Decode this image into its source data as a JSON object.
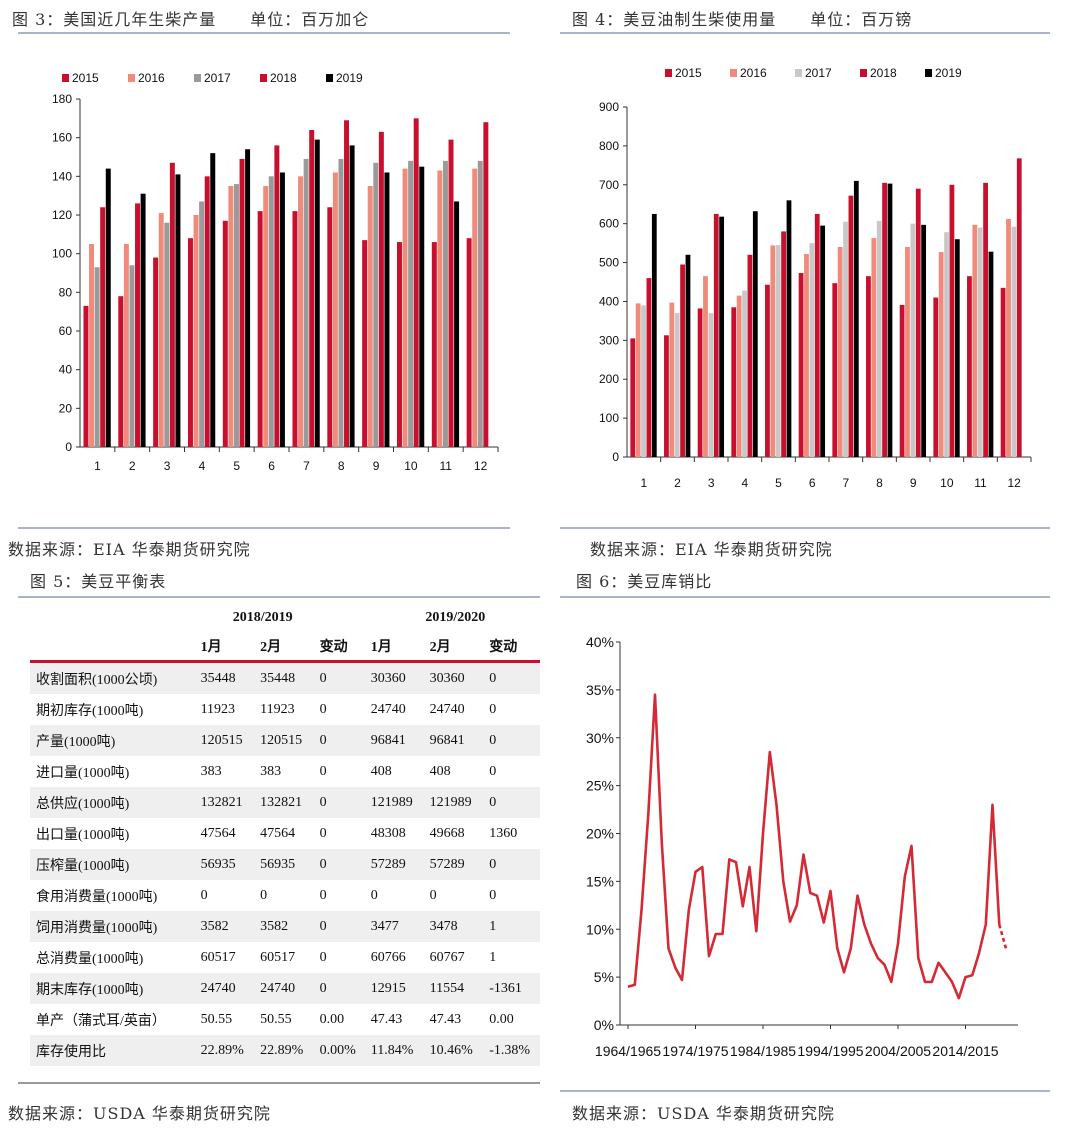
{
  "fig3": {
    "caption": "图 3：美国近几年生柴产量　　单位：百万加仑",
    "source": "数据来源：EIA 华泰期货研究院"
  },
  "fig4": {
    "caption": "图 4：美豆油制生柴使用量　　单位：百万镑",
    "source": "数据来源：EIA 华泰期货研究院"
  },
  "fig5": {
    "caption": "图 5：美豆平衡表",
    "source": "数据来源：USDA 华泰期货研究院"
  },
  "fig6": {
    "caption": "图 6：美豆库销比",
    "source": "数据来源：USDA 华泰期货研究院"
  },
  "colors": {
    "s2015": "#c8102e",
    "s2016": "#f08a7a",
    "s2017": "#9a9a9a",
    "s2018": "#c8102e",
    "s2019": "#000000",
    "s2017_fig4": "#c8c8c8",
    "line": "#d42a35"
  },
  "chart_data": [
    {
      "type": "bar",
      "title": "",
      "categories": [
        "1",
        "2",
        "3",
        "4",
        "5",
        "6",
        "7",
        "8",
        "9",
        "10",
        "11",
        "12"
      ],
      "ylim": [
        0,
        180
      ],
      "yticks": [
        0,
        20,
        40,
        60,
        80,
        100,
        120,
        140,
        160,
        180
      ],
      "legend": "top-left",
      "series": [
        {
          "name": "2015",
          "values": [
            73,
            78,
            98,
            108,
            117,
            122,
            122,
            124,
            107,
            106,
            106,
            108
          ]
        },
        {
          "name": "2016",
          "values": [
            105,
            105,
            121,
            120,
            135,
            135,
            140,
            142,
            135,
            144,
            143,
            144
          ]
        },
        {
          "name": "2017",
          "values": [
            93,
            94,
            116,
            127,
            136,
            140,
            149,
            149,
            147,
            148,
            148,
            148
          ]
        },
        {
          "name": "2018",
          "values": [
            124,
            126,
            147,
            140,
            149,
            156,
            164,
            169,
            163,
            170,
            159,
            168
          ]
        },
        {
          "name": "2019",
          "values": [
            144,
            131,
            141,
            152,
            154,
            142,
            159,
            156,
            142,
            145,
            127,
            null
          ]
        }
      ]
    },
    {
      "type": "bar",
      "title": "",
      "categories": [
        "1",
        "2",
        "3",
        "4",
        "5",
        "6",
        "7",
        "8",
        "9",
        "10",
        "11",
        "12"
      ],
      "ylim": [
        0,
        900
      ],
      "yticks": [
        0,
        100,
        200,
        300,
        400,
        500,
        600,
        700,
        800,
        900
      ],
      "legend": "top",
      "series": [
        {
          "name": "2015",
          "values": [
            305,
            313,
            382,
            385,
            443,
            473,
            447,
            465,
            391,
            410,
            465,
            435
          ]
        },
        {
          "name": "2016",
          "values": [
            395,
            397,
            465,
            415,
            544,
            522,
            540,
            563,
            540,
            527,
            597,
            612
          ]
        },
        {
          "name": "2017",
          "values": [
            390,
            370,
            370,
            428,
            545,
            550,
            605,
            607,
            600,
            578,
            590,
            592
          ]
        },
        {
          "name": "2018",
          "values": [
            460,
            495,
            625,
            520,
            580,
            625,
            672,
            705,
            690,
            700,
            705,
            768
          ]
        },
        {
          "name": "2019",
          "values": [
            625,
            520,
            618,
            632,
            660,
            595,
            710,
            703,
            597,
            560,
            528,
            null
          ]
        }
      ]
    },
    {
      "type": "table",
      "groups": [
        "2018/2019",
        "2019/2020"
      ],
      "headers": [
        "1月",
        "2月",
        "变动",
        "1月",
        "2月",
        "变动"
      ],
      "rows": [
        {
          "label": "收割面积(1000公顷)",
          "cells": [
            "35448",
            "35448",
            "0",
            "30360",
            "30360",
            "0"
          ]
        },
        {
          "label": "期初库存(1000吨)",
          "cells": [
            "11923",
            "11923",
            "0",
            "24740",
            "24740",
            "0"
          ]
        },
        {
          "label": "产量(1000吨)",
          "cells": [
            "120515",
            "120515",
            "0",
            "96841",
            "96841",
            "0"
          ]
        },
        {
          "label": "进口量(1000吨)",
          "cells": [
            "383",
            "383",
            "0",
            "408",
            "408",
            "0"
          ]
        },
        {
          "label": "总供应(1000吨)",
          "cells": [
            "132821",
            "132821",
            "0",
            "121989",
            "121989",
            "0"
          ]
        },
        {
          "label": "出口量(1000吨)",
          "cells": [
            "47564",
            "47564",
            "0",
            "48308",
            "49668",
            "1360"
          ]
        },
        {
          "label": "压榨量(1000吨)",
          "cells": [
            "56935",
            "56935",
            "0",
            "57289",
            "57289",
            "0"
          ]
        },
        {
          "label": "食用消费量(1000吨)",
          "cells": [
            "0",
            "0",
            "0",
            "0",
            "0",
            "0"
          ]
        },
        {
          "label": "饲用消费量(1000吨)",
          "cells": [
            "3582",
            "3582",
            "0",
            "3477",
            "3478",
            "1"
          ]
        },
        {
          "label": "总消费量(1000吨)",
          "cells": [
            "60517",
            "60517",
            "0",
            "60766",
            "60767",
            "1"
          ]
        },
        {
          "label": "期末库存(1000吨)",
          "cells": [
            "24740",
            "24740",
            "0",
            "12915",
            "11554",
            "-1361"
          ]
        },
        {
          "label": "单产（蒲式耳/英亩）",
          "cells": [
            "50.55",
            "50.55",
            "0.00",
            "47.43",
            "47.43",
            "0.00"
          ]
        },
        {
          "label": "库存使用比",
          "cells": [
            "22.89%",
            "22.89%",
            "0.00%",
            "11.84%",
            "10.46%",
            "-1.38%"
          ]
        }
      ]
    },
    {
      "type": "line",
      "title": "",
      "x_tick_labels": [
        "1964/1965",
        "1974/1975",
        "1984/1985",
        "1994/1995",
        "2004/2005",
        "2014/2015"
      ],
      "x_start": 1964,
      "ylim": [
        0,
        40
      ],
      "yticks": [
        "0%",
        "5%",
        "10%",
        "15%",
        "20%",
        "25%",
        "30%",
        "35%",
        "40%"
      ],
      "series": [
        {
          "values": [
            4,
            4.2,
            12,
            22,
            34.5,
            19,
            8,
            6,
            4.7,
            12,
            16,
            16.5,
            7.2,
            9.5,
            9.5,
            17.3,
            17,
            12.4,
            16.5,
            9.8,
            20,
            28.5,
            23,
            15,
            10.8,
            12.5,
            17.8,
            13.8,
            13.5,
            10.7,
            14,
            8,
            5.5,
            8,
            13.5,
            10.5,
            8.5,
            7,
            6.3,
            4.5,
            8.5,
            15.5,
            18.7,
            7,
            4.5,
            4.5,
            6.5,
            5.5,
            4.5,
            2.8,
            5,
            5.2,
            7.5,
            10.5,
            23,
            10.5,
            8
          ]
        }
      ]
    }
  ]
}
